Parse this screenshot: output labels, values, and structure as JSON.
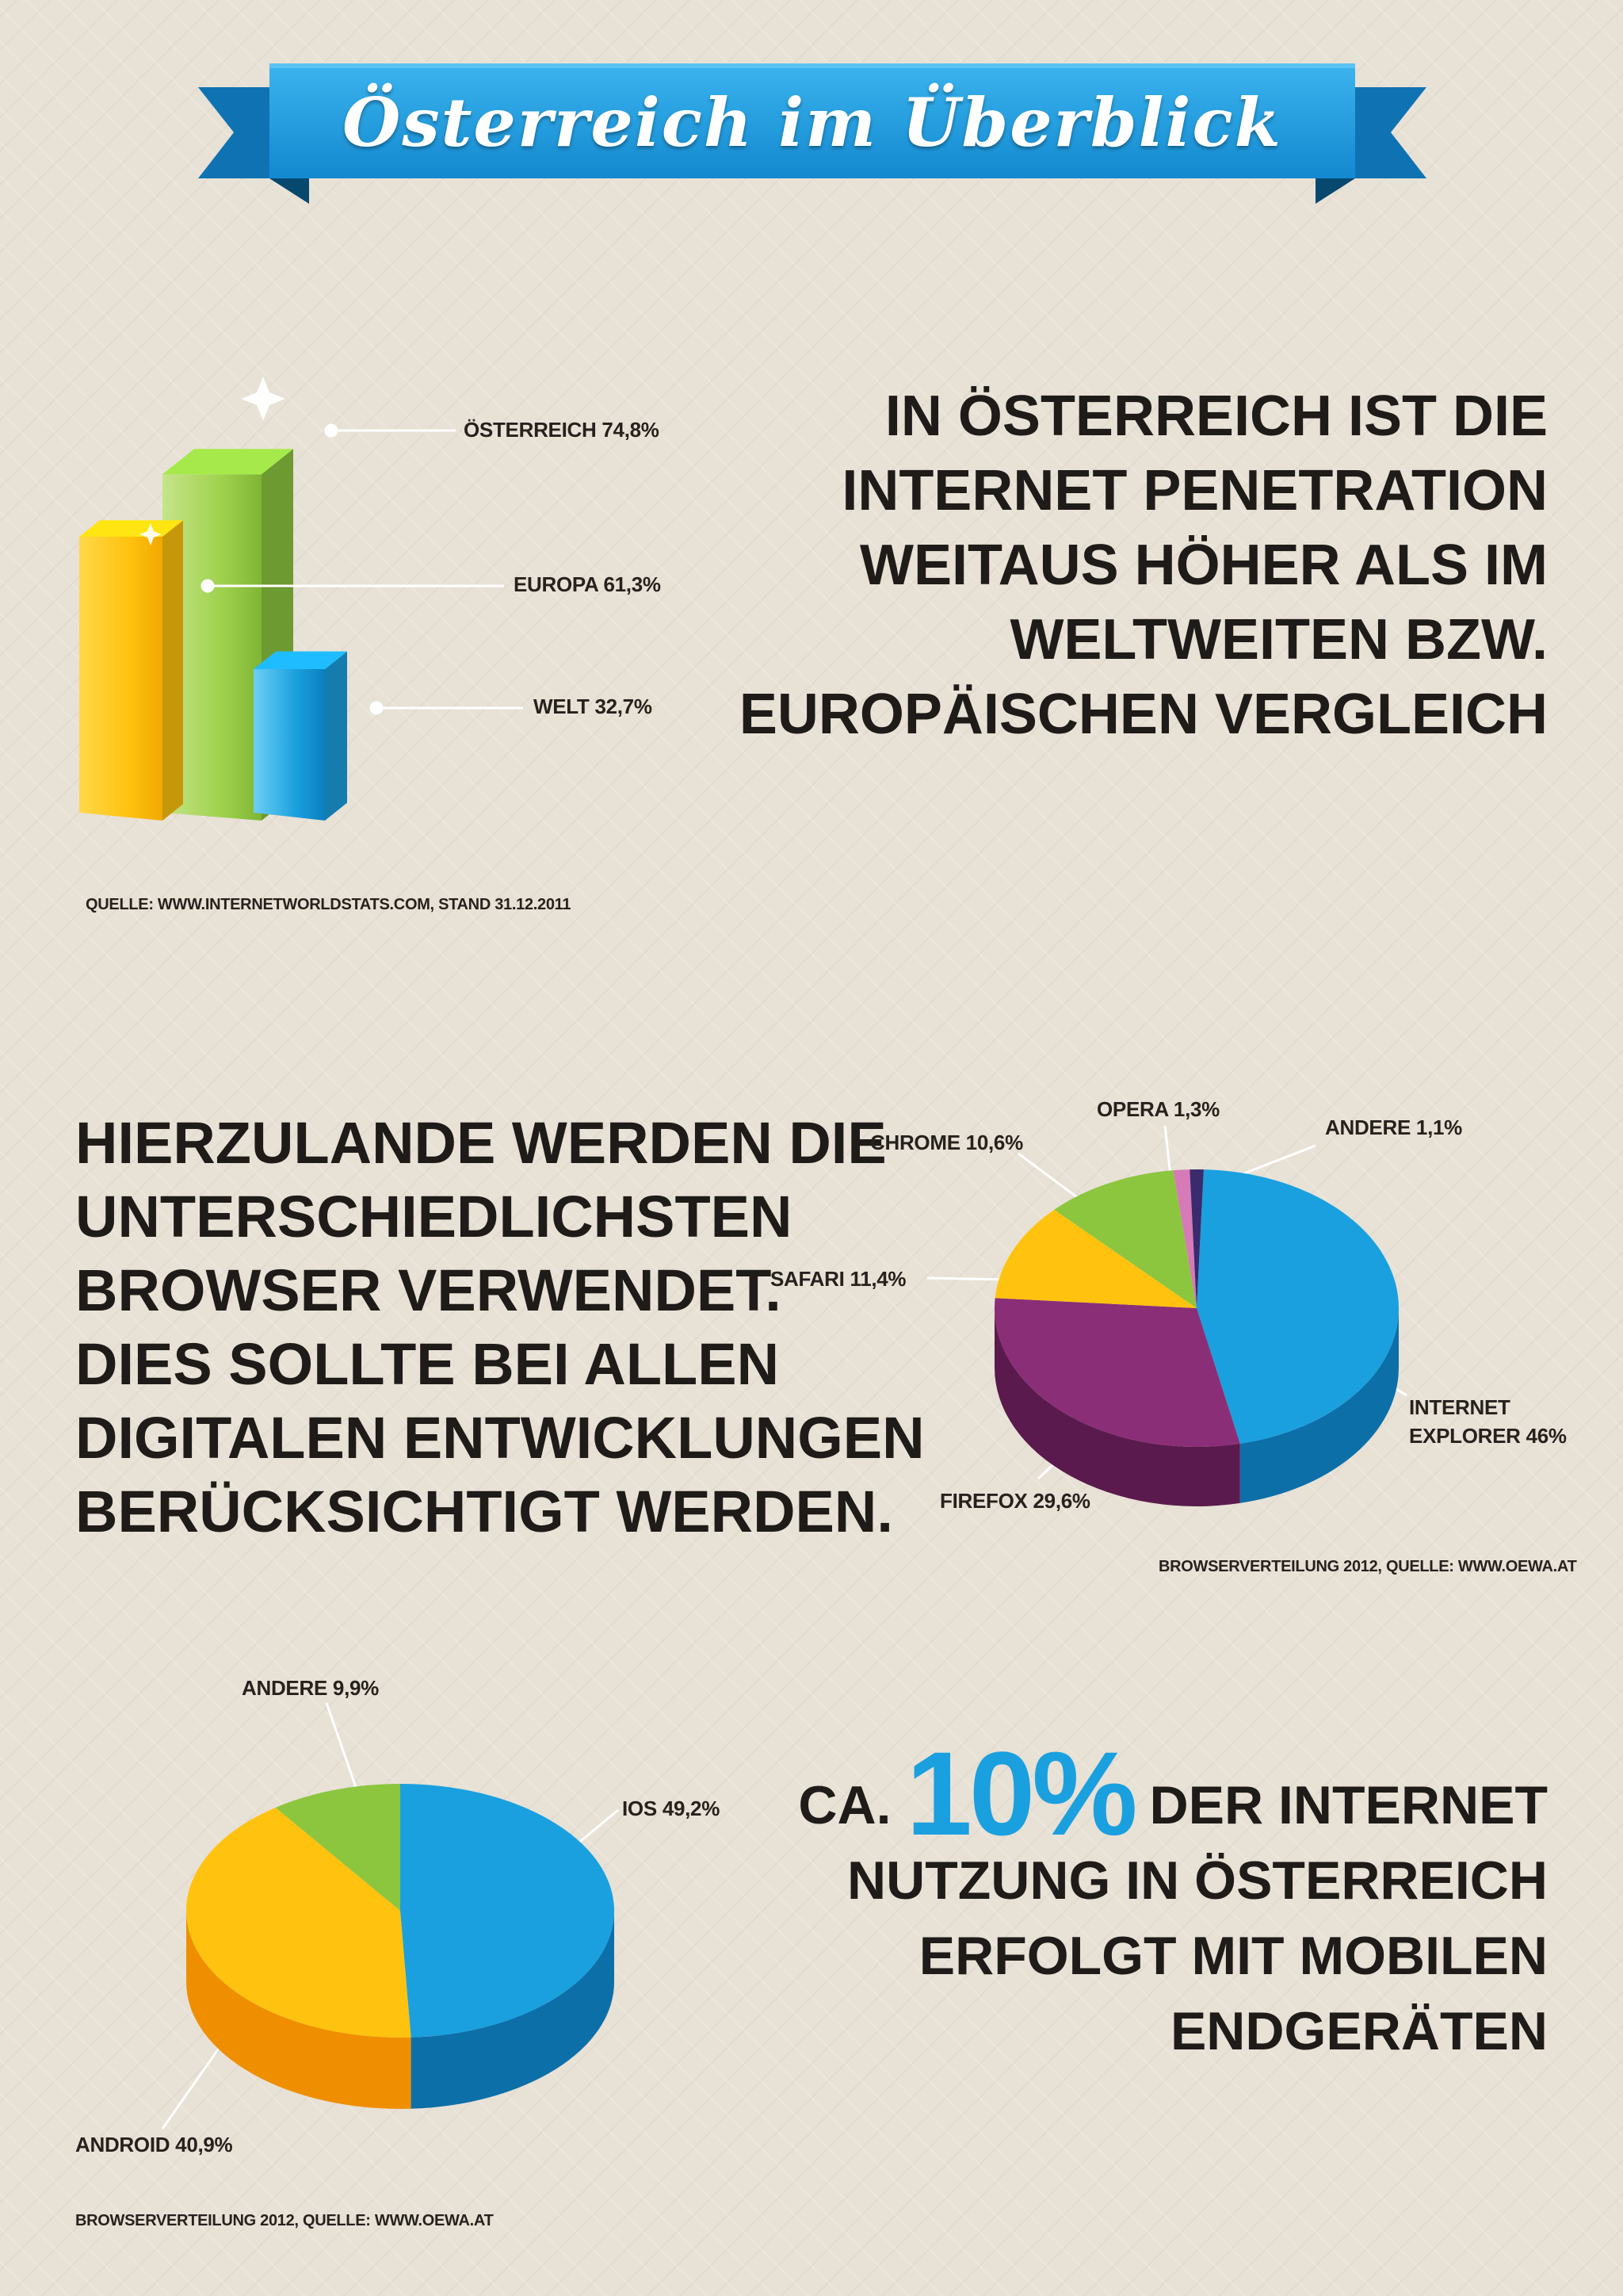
{
  "title": "Österreich im Überblick",
  "statements": {
    "penetration": [
      "IN ÖSTERREICH IST DIE",
      "INTERNET PENETRATION",
      "WEITAUS HÖHER ALS IM",
      "WELTWEITEN BZW.",
      "EUROPÄISCHEN VERGLEICH"
    ],
    "browsers": [
      "HIERZULANDE WERDEN DIE",
      "UNTERSCHIEDLICHSTEN",
      "BROWSER VERWENDET.",
      "DIES SOLLTE BEI ALLEN",
      "DIGITALEN ENTWICKLUNGEN",
      "BERÜCKSICHTIGT WERDEN."
    ],
    "mobile_prefix": "CA.",
    "mobile_highlight": "10%",
    "mobile_line1_suffix": "DER INTERNET",
    "mobile_lines": [
      "NUTZUNG IN ÖSTERREICH",
      "ERFOLGT MIT MOBILEN",
      "ENDGERÄTEN"
    ]
  },
  "sources": {
    "penetration": "QUELLE: WWW.INTERNETWORLDSTATS.COM, STAND 31.12.2011",
    "browsers": "BROWSERVERTEILUNG 2012, QUELLE: WWW.OEWA.AT",
    "mobile": "BROWSERVERTEILUNG 2012, QUELLE: WWW.OEWA.AT"
  },
  "colors": {
    "banner": "#1f9fe0",
    "banner_dark": "#0b5f96",
    "highlight": "#1aa0de",
    "austria_bar": "#8cc63f",
    "europe_bar": "#ffc20e",
    "world_bar": "#1aa0de"
  },
  "chart_data": [
    {
      "type": "bar",
      "categories": [
        "ÖSTERREICH",
        "EUROPA",
        "WELT"
      ],
      "values": [
        74.8,
        61.3,
        32.7
      ],
      "labels": [
        "ÖSTERREICH 74,8%",
        "EUROPA 61,3%",
        "WELT 32,7%"
      ],
      "colors": [
        "#8cc63f",
        "#ffc20e",
        "#1aa0de"
      ],
      "unit": "%"
    },
    {
      "type": "pie",
      "slices": [
        {
          "label": "INTERNET EXPLORER 46%",
          "value": 46,
          "color": "#1aa0de",
          "dark": "#0d6fa8"
        },
        {
          "label": "FIREFOX 29,6%",
          "value": 29.6,
          "color": "#8b2e78",
          "dark": "#5a1a4d"
        },
        {
          "label": "SAFARI 11,4%",
          "value": 11.4,
          "color": "#ffc20e",
          "dark": "#c48d00"
        },
        {
          "label": "CHROME 10,6%",
          "value": 10.6,
          "color": "#8cc63f",
          "dark": "#5e8c22"
        },
        {
          "label": "OPERA 1,3%",
          "value": 1.3,
          "color": "#d67ab8",
          "dark": "#a0508a"
        },
        {
          "label": "ANDERE 1,1%",
          "value": 1.1,
          "color": "#3a2a6e",
          "dark": "#221847"
        }
      ]
    },
    {
      "type": "pie",
      "slices": [
        {
          "label": "IOS 49,2%",
          "value": 49.2,
          "color": "#1aa0de",
          "dark": "#0d6fa8"
        },
        {
          "label": "ANDROID 40,9%",
          "value": 40.9,
          "color": "#ffc20e",
          "dark": "#ef8f00"
        },
        {
          "label": "ANDERE 9,9%",
          "value": 9.9,
          "color": "#8cc63f",
          "dark": "#5e8c22"
        }
      ]
    }
  ]
}
